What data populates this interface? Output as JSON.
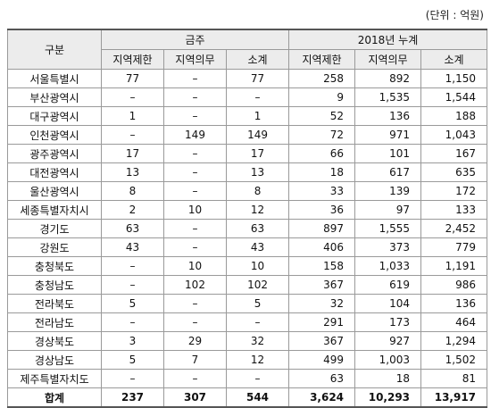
{
  "unit_note": "(단위 : 억원)",
  "table": {
    "header": [
      [
        "구분",
        "금주",
        "2018년 누계"
      ],
      [
        "지역제한",
        "지역의무",
        "소계",
        "지역제한",
        "지역의무",
        "소계"
      ]
    ],
    "rows": [
      [
        "서울특별시",
        "77",
        "–",
        "77",
        "258",
        "892",
        "1,150"
      ],
      [
        "부산광역시",
        "–",
        "–",
        "–",
        "9",
        "1,535",
        "1,544"
      ],
      [
        "대구광역시",
        "1",
        "–",
        "1",
        "52",
        "136",
        "188"
      ],
      [
        "인천광역시",
        "–",
        "149",
        "149",
        "72",
        "971",
        "1,043"
      ],
      [
        "광주광역시",
        "17",
        "–",
        "17",
        "66",
        "101",
        "167"
      ],
      [
        "대전광역시",
        "13",
        "–",
        "13",
        "18",
        "617",
        "635"
      ],
      [
        "울산광역시",
        "8",
        "–",
        "8",
        "33",
        "139",
        "172"
      ],
      [
        "세종특별자치시",
        "2",
        "10",
        "12",
        "36",
        "97",
        "133"
      ],
      [
        "경기도",
        "63",
        "–",
        "63",
        "897",
        "1,555",
        "2,452"
      ],
      [
        "강원도",
        "43",
        "–",
        "43",
        "406",
        "373",
        "779"
      ],
      [
        "충청북도",
        "–",
        "10",
        "10",
        "158",
        "1,033",
        "1,191"
      ],
      [
        "충청남도",
        "–",
        "102",
        "102",
        "367",
        "619",
        "986"
      ],
      [
        "전라북도",
        "5",
        "–",
        "5",
        "32",
        "104",
        "136"
      ],
      [
        "전라남도",
        "–",
        "–",
        "–",
        "291",
        "173",
        "464"
      ],
      [
        "경상북도",
        "3",
        "29",
        "32",
        "367",
        "927",
        "1,294"
      ],
      [
        "경상남도",
        "5",
        "7",
        "12",
        "499",
        "1,003",
        "1,502"
      ],
      [
        "제주특별자치도",
        "–",
        "–",
        "–",
        "63",
        "18",
        "81"
      ],
      [
        "합계",
        "237",
        "307",
        "544",
        "3,624",
        "10,293",
        "13,917"
      ]
    ]
  }
}
